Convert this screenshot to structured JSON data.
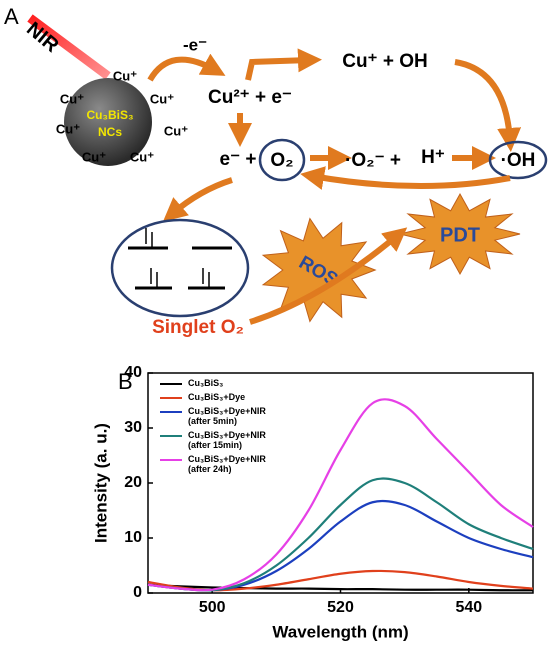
{
  "panel_a": {
    "label": "A",
    "nir": "NIR",
    "nc_name": "Cu₃BiS₃",
    "nc_suffix": "NCs",
    "cu_ions": [
      "Cu⁺",
      "Cu⁺",
      "Cu⁺",
      "Cu⁺",
      "Cu⁺",
      "Cu⁺",
      "Cu⁺"
    ],
    "electron_loss": "-e⁻",
    "cu2": "Cu²⁺ + e⁻",
    "cu_oh": "Cu⁺ + OH",
    "e_plus": "e⁻ +",
    "o2": "O₂",
    "superoxide": "·O₂⁻ +",
    "h_plus": "H⁺",
    "oh": "·OH",
    "singlet": "Singlet O₂",
    "ros": "ROS",
    "pdt": "PDT"
  },
  "panel_b": {
    "label": "B"
  },
  "chart_data": {
    "type": "line",
    "xlabel": "Wavelength (nm)",
    "ylabel": "Intensity (a. u.)",
    "x": [
      490,
      495,
      500,
      505,
      510,
      515,
      520,
      525,
      530,
      535,
      540,
      545,
      550
    ],
    "xlim": [
      490,
      550
    ],
    "xticks": [
      500,
      520,
      540
    ],
    "ylim": [
      0,
      40
    ],
    "yticks": [
      0,
      10,
      20,
      30,
      40
    ],
    "series": [
      {
        "name": "Cu₃BiS₃",
        "color": "#000000",
        "values": [
          1.5,
          1.2,
          1.0,
          0.9,
          0.8,
          0.8,
          0.7,
          0.7,
          0.6,
          0.6,
          0.6,
          0.5,
          0.5
        ]
      },
      {
        "name": "Cu₃BiS₃+Dye",
        "color": "#e0401c",
        "values": [
          2,
          1,
          0.5,
          0.8,
          1.5,
          2.5,
          3.5,
          4,
          3.8,
          3,
          2,
          1.3,
          0.8
        ]
      },
      {
        "name": "Cu₃BiS₃+Dye+NIR (after 5min)",
        "color": "#1c3fbf",
        "values": [
          1.5,
          0.8,
          0.5,
          1.5,
          4,
          8,
          13,
          16.5,
          16,
          13,
          10,
          8,
          6.5
        ]
      },
      {
        "name": "Cu₃BiS₃+Dye+NIR (after 15min)",
        "color": "#1f7f7a",
        "values": [
          1.5,
          0.8,
          0.5,
          1.8,
          5,
          10,
          16,
          20.5,
          20,
          16.5,
          12.5,
          10,
          8
        ]
      },
      {
        "name": "Cu₃BiS₃+Dye+NIR (after 24h)",
        "color": "#e640e6",
        "values": [
          1.5,
          0.8,
          0.6,
          2.5,
          7,
          15,
          26,
          34.5,
          34,
          28,
          22,
          16,
          12
        ]
      }
    ]
  }
}
